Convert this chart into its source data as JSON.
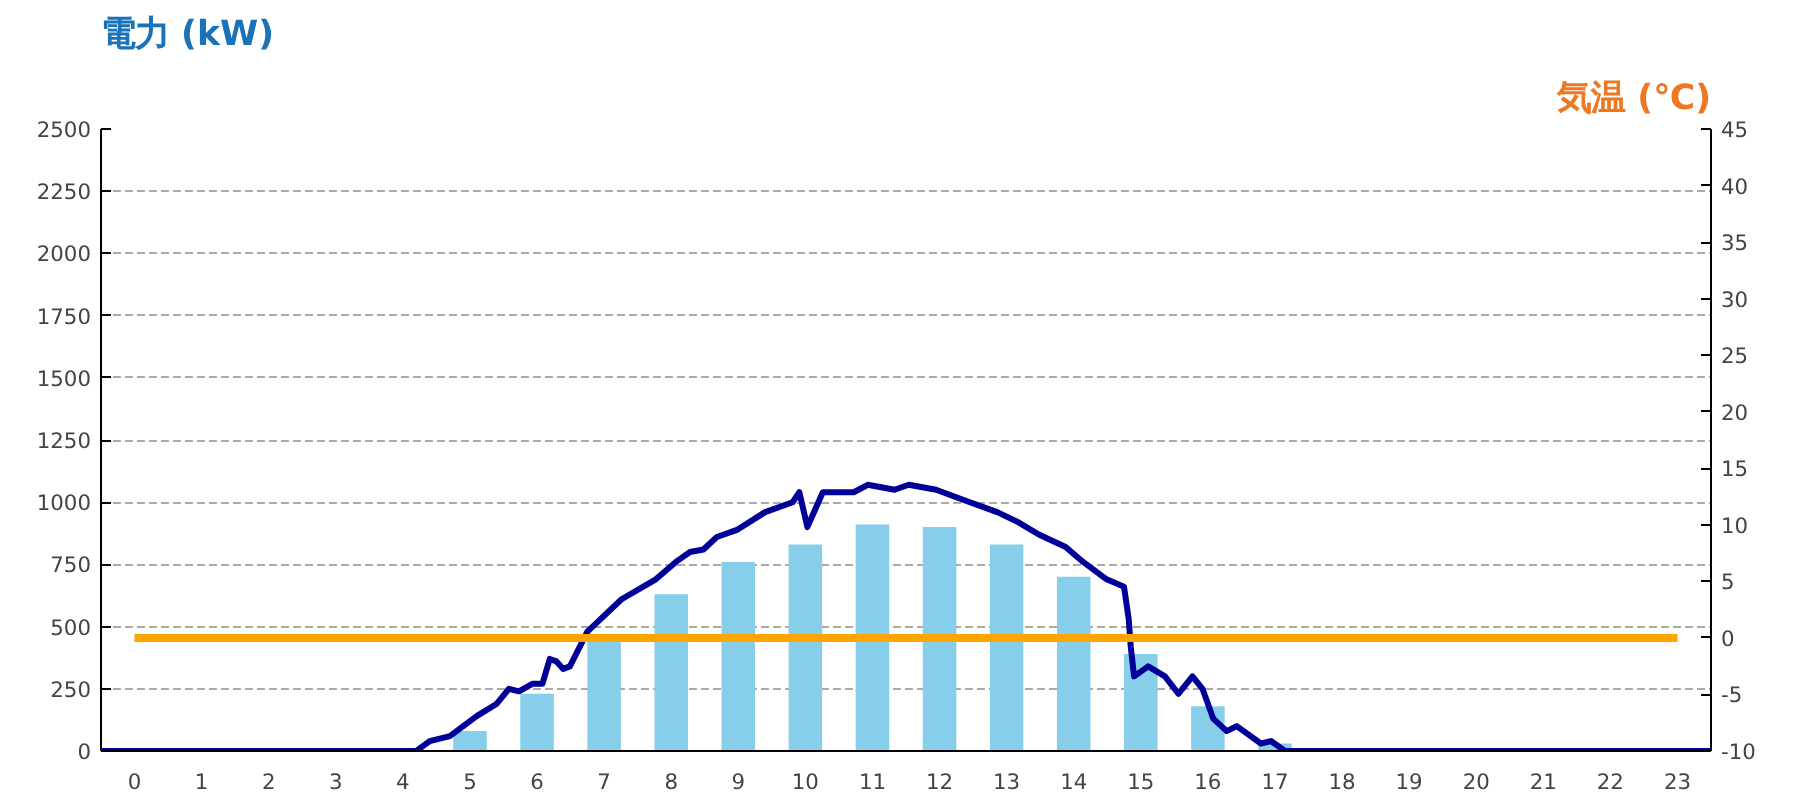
{
  "chart_data": {
    "type": "bar",
    "ylabel": "電力 (kW)",
    "y2label": "気温 (℃)",
    "xlim": [
      0,
      24
    ],
    "xticks": [
      {
        "value": 0.5,
        "label": "0"
      },
      {
        "value": 1.5,
        "label": "1"
      },
      {
        "value": 2.5,
        "label": "2"
      },
      {
        "value": 3.5,
        "label": "3"
      },
      {
        "value": 4.5,
        "label": "4"
      },
      {
        "value": 5.5,
        "label": "5"
      },
      {
        "value": 6.5,
        "label": "6"
      },
      {
        "value": 7.5,
        "label": "7"
      },
      {
        "value": 8.5,
        "label": "8"
      },
      {
        "value": 9.5,
        "label": "9"
      },
      {
        "value": 10.5,
        "label": "10"
      },
      {
        "value": 11.5,
        "label": "11"
      },
      {
        "value": 12.5,
        "label": "12"
      },
      {
        "value": 13.5,
        "label": "13"
      },
      {
        "value": 14.5,
        "label": "14"
      },
      {
        "value": 15.5,
        "label": "15"
      },
      {
        "value": 16.5,
        "label": "16"
      },
      {
        "value": 17.5,
        "label": "17"
      },
      {
        "value": 18.5,
        "label": "18"
      },
      {
        "value": 19.5,
        "label": "19"
      },
      {
        "value": 20.5,
        "label": "20"
      },
      {
        "value": 21.5,
        "label": "21"
      },
      {
        "value": 22.5,
        "label": "22"
      },
      {
        "value": 23.5,
        "label": "23"
      }
    ],
    "ylim": [
      0,
      2500
    ],
    "yticks": [
      0,
      250,
      500,
      750,
      1000,
      1250,
      1500,
      1750,
      2000,
      2250,
      2500
    ],
    "y2lim": [
      -10,
      45
    ],
    "y2ticks": [
      -10,
      -5,
      0,
      5,
      10,
      15,
      20,
      25,
      30,
      35,
      40,
      45
    ],
    "grid": "y",
    "line_style": "solid",
    "series": [
      {
        "color": "#87ceeb",
        "x": [
          0.5,
          1.5,
          2.5,
          3.5,
          4.5,
          5.5,
          6.5,
          7.5,
          8.5,
          9.5,
          10.5,
          11.5,
          12.5,
          13.5,
          14.5,
          15.5,
          16.5,
          17.5,
          18.5,
          19.5,
          20.5,
          21.5,
          22.5,
          23.5
        ],
        "values": [
          0,
          0,
          0,
          0,
          0,
          80,
          230,
          440,
          630,
          760,
          830,
          910,
          900,
          830,
          700,
          390,
          180,
          30,
          0,
          0,
          0,
          0,
          0,
          0
        ]
      },
      {
        "type": "line",
        "color": "#000099",
        "x": [
          0,
          4.7,
          4.9,
          5.2,
          5.6,
          5.9,
          6.08,
          6.23,
          6.43,
          6.58,
          6.69,
          6.79,
          6.89,
          6.99,
          7.25,
          7.76,
          8.27,
          8.57,
          8.78,
          8.98,
          9.18,
          9.49,
          9.9,
          10.31,
          10.41,
          10.53,
          10.76,
          10.98,
          11.22,
          11.43,
          11.63,
          11.83,
          12.04,
          12.45,
          12.85,
          13.36,
          13.67,
          13.98,
          14.38,
          14.64,
          14.99,
          15.25,
          15.32,
          15.35,
          15.4,
          15.61,
          15.86,
          16.06,
          16.27,
          16.42,
          16.58,
          16.78,
          16.93,
          17.29,
          17.44,
          17.65,
          24
        ],
        "values": [
          0,
          0,
          40,
          60,
          140,
          190,
          250,
          240,
          270,
          270,
          370,
          360,
          330,
          340,
          480,
          610,
          690,
          760,
          800,
          810,
          860,
          890,
          960,
          1000,
          1040,
          900,
          1040,
          1040,
          1040,
          1070,
          1060,
          1050,
          1070,
          1050,
          1010,
          960,
          920,
          870,
          820,
          760,
          690,
          660,
          530,
          420,
          300,
          340,
          300,
          230,
          300,
          250,
          130,
          80,
          100,
          30,
          40,
          0,
          0
        ]
      },
      {
        "type": "line",
        "axis": "y2",
        "color": "#ffa500",
        "x": [
          0.5,
          1.5,
          2.5,
          3.5,
          4.5,
          5.5,
          6.5,
          7.5,
          8.5,
          9.5,
          10.5,
          11.5,
          12.5,
          13.5,
          14.5,
          15.5,
          16.5,
          17.5,
          18.5,
          19.5,
          20.5,
          21.5,
          22.5,
          23.5
        ],
        "values": [
          0,
          0,
          0,
          0,
          0,
          0,
          0,
          0,
          0,
          0,
          0,
          0,
          0,
          0,
          0,
          0,
          0,
          0,
          0,
          0,
          0,
          0,
          0,
          0
        ]
      }
    ]
  }
}
